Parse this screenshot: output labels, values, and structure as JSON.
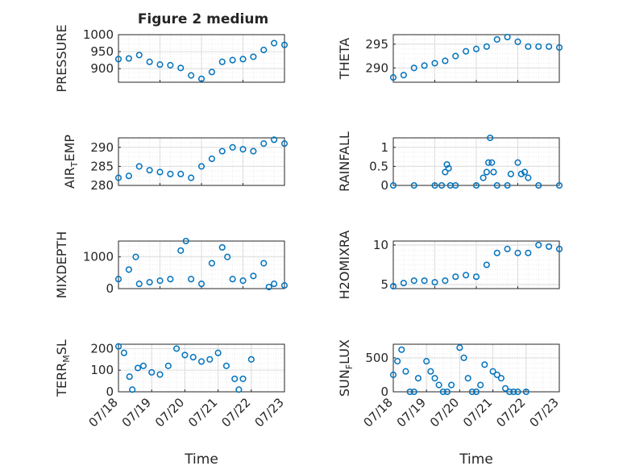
{
  "figure": {
    "title": "Figure 2 medium"
  },
  "colors": {
    "marker": "#0072BD",
    "axis": "#262626",
    "grid_major": "#dcdcdc",
    "grid_minor": "#ececec"
  },
  "chart_data": [
    {
      "type": "scatter",
      "id": "pressure",
      "ylabel": "PRESSURE",
      "xlim": [
        "07/18",
        "07/22"
      ],
      "ylim": [
        860,
        1000
      ],
      "yticks": [
        "900",
        "950",
        "1000"
      ],
      "ytick_values": [
        900,
        950,
        1000
      ],
      "xtick_labels": [],
      "xlabel": "",
      "grid": "on",
      "x": [
        "07/18",
        "07/18 06:00",
        "07/18 12:00",
        "07/18 18:00",
        "07/19",
        "07/19 06:00",
        "07/19 12:00",
        "07/19 18:00",
        "07/20",
        "07/20 06:00",
        "07/20 12:00",
        "07/20 18:00",
        "07/21",
        "07/21 06:00",
        "07/21 12:00",
        "07/21 18:00",
        "07/22"
      ],
      "y": [
        928,
        930,
        940,
        920,
        912,
        910,
        902,
        880,
        870,
        890,
        920,
        925,
        928,
        935,
        955,
        975,
        970
      ]
    },
    {
      "type": "scatter",
      "id": "theta",
      "ylabel": "THETA",
      "xlim": [
        "07/18",
        "07/22"
      ],
      "ylim": [
        287,
        297
      ],
      "yticks": [
        "290",
        "295"
      ],
      "ytick_values": [
        290,
        295
      ],
      "xtick_labels": [],
      "xlabel": "",
      "grid": "on",
      "x": [
        "07/18",
        "07/18 06:00",
        "07/18 12:00",
        "07/18 18:00",
        "07/19",
        "07/19 06:00",
        "07/19 12:00",
        "07/19 18:00",
        "07/20",
        "07/20 06:00",
        "07/20 12:00",
        "07/20 18:00",
        "07/21",
        "07/21 06:00",
        "07/21 12:00",
        "07/21 18:00",
        "07/22"
      ],
      "y": [
        288,
        288.5,
        290,
        290.5,
        291,
        291.5,
        292.5,
        293.5,
        294,
        294.5,
        296,
        296.5,
        295.5,
        294.5,
        294.5,
        294.5,
        294.3
      ]
    },
    {
      "type": "scatter",
      "id": "air-temp",
      "ylabel": "AIR_TEMP",
      "xlim": [
        "07/18",
        "07/22"
      ],
      "ylim": [
        280,
        292.5
      ],
      "yticks": [
        "280",
        "285",
        "290"
      ],
      "ytick_values": [
        280,
        285,
        290
      ],
      "xtick_labels": [],
      "xlabel": "",
      "grid": "on",
      "x": [
        "07/18",
        "07/18 06:00",
        "07/18 12:00",
        "07/18 18:00",
        "07/19",
        "07/19 06:00",
        "07/19 12:00",
        "07/19 18:00",
        "07/20",
        "07/20 06:00",
        "07/20 12:00",
        "07/20 18:00",
        "07/21",
        "07/21 06:00",
        "07/21 12:00",
        "07/21 18:00",
        "07/22"
      ],
      "y": [
        282,
        282.5,
        285,
        284,
        283.5,
        283,
        283,
        282,
        285,
        287,
        289,
        290,
        289.5,
        289,
        291,
        292,
        291
      ]
    },
    {
      "type": "scatter",
      "id": "rainfall",
      "ylabel": "RAINFALL",
      "xlim": [
        "07/18",
        "07/22"
      ],
      "ylim": [
        0,
        1.25
      ],
      "yticks": [
        "0",
        "0.5",
        "1"
      ],
      "ytick_values": [
        0,
        0.5,
        1
      ],
      "xtick_labels": [],
      "xlabel": "",
      "grid": "on",
      "x": [
        "07/18",
        "07/18 12:00",
        "07/19",
        "07/19 04:00",
        "07/19 06:00",
        "07/19 07:00",
        "07/19 08:00",
        "07/19 09:00",
        "07/19 12:00",
        "07/20",
        "07/20 04:00",
        "07/20 06:00",
        "07/20 07:00",
        "07/20 08:00",
        "07/20 09:00",
        "07/20 10:00",
        "07/20 12:00",
        "07/20 18:00",
        "07/20 20:00",
        "07/21",
        "07/21 02:00",
        "07/21 04:00",
        "07/21 06:00",
        "07/21 12:00",
        "07/22"
      ],
      "y": [
        0,
        0,
        0,
        0,
        0.35,
        0.55,
        0.45,
        0,
        0,
        0,
        0.2,
        0.35,
        0.6,
        1.25,
        0.6,
        0.35,
        0,
        0,
        0.3,
        0.6,
        0.3,
        0.35,
        0.2,
        0,
        0
      ]
    },
    {
      "type": "scatter",
      "id": "mixdepth",
      "ylabel": "MIXDEPTH",
      "xlim": [
        "07/18",
        "07/22"
      ],
      "ylim": [
        0,
        1500
      ],
      "yticks": [
        "0",
        "1000"
      ],
      "ytick_values": [
        0,
        1000
      ],
      "xtick_labels": [],
      "xlabel": "",
      "grid": "on",
      "x": [
        "07/18",
        "07/18 06:00",
        "07/18 10:00",
        "07/18 12:00",
        "07/18 18:00",
        "07/19",
        "07/19 06:00",
        "07/19 12:00",
        "07/19 15:00",
        "07/19 18:00",
        "07/20",
        "07/20 06:00",
        "07/20 12:00",
        "07/20 15:00",
        "07/20 18:00",
        "07/21",
        "07/21 06:00",
        "07/21 12:00",
        "07/21 15:00",
        "07/21 18:00",
        "07/22"
      ],
      "y": [
        300,
        600,
        1000,
        150,
        200,
        250,
        300,
        1200,
        1500,
        300,
        150,
        800,
        1300,
        1000,
        300,
        250,
        400,
        800,
        50,
        150,
        100
      ]
    },
    {
      "type": "scatter",
      "id": "h2omixra",
      "ylabel": "H2OMIXRA",
      "xlim": [
        "07/18",
        "07/22"
      ],
      "ylim": [
        4.5,
        10.5
      ],
      "yticks": [
        "5",
        "10"
      ],
      "ytick_values": [
        5,
        10
      ],
      "xtick_labels": [],
      "xlabel": "",
      "grid": "on",
      "x": [
        "07/18",
        "07/18 06:00",
        "07/18 12:00",
        "07/18 18:00",
        "07/19",
        "07/19 06:00",
        "07/19 12:00",
        "07/19 18:00",
        "07/20",
        "07/20 06:00",
        "07/20 12:00",
        "07/20 18:00",
        "07/21",
        "07/21 06:00",
        "07/21 12:00",
        "07/21 18:00",
        "07/22"
      ],
      "y": [
        4.8,
        5.2,
        5.5,
        5.5,
        5.3,
        5.5,
        6,
        6.2,
        6,
        7.5,
        9,
        9.5,
        9,
        9,
        10,
        9.8,
        9.5
      ]
    },
    {
      "type": "scatter",
      "id": "terr-msl",
      "ylabel": "TERR_MSL",
      "xlim": [
        "07/18",
        "07/23"
      ],
      "ylim": [
        0,
        220
      ],
      "yticks": [
        "0",
        "100",
        "200"
      ],
      "ytick_values": [
        0,
        100,
        200
      ],
      "xtick_labels": [
        "07/18",
        "07/19",
        "07/20",
        "07/21",
        "07/22",
        "07/23"
      ],
      "xlabel": "Time",
      "grid": "on",
      "x": [
        "07/18",
        "07/18 04:00",
        "07/18 08:00",
        "07/18 10:00",
        "07/18 14:00",
        "07/18 18:00",
        "07/19",
        "07/19 06:00",
        "07/19 12:00",
        "07/19 18:00",
        "07/20",
        "07/20 06:00",
        "07/20 12:00",
        "07/20 18:00",
        "07/21",
        "07/21 06:00",
        "07/21 12:00",
        "07/21 15:00",
        "07/21 18:00",
        "07/22"
      ],
      "y": [
        210,
        180,
        70,
        10,
        110,
        120,
        90,
        80,
        120,
        200,
        170,
        160,
        140,
        150,
        180,
        120,
        60,
        10,
        60,
        150
      ]
    },
    {
      "type": "scatter",
      "id": "sun-flux",
      "ylabel": "SUN_FLUX",
      "xlim": [
        "07/18",
        "07/23"
      ],
      "ylim": [
        0,
        700
      ],
      "yticks": [
        "0",
        "500"
      ],
      "ytick_values": [
        0,
        500
      ],
      "xtick_labels": [
        "07/18",
        "07/19",
        "07/20",
        "07/21",
        "07/22",
        "07/23"
      ],
      "xlabel": "Time",
      "grid": "on",
      "x": [
        "07/18",
        "07/18 03:00",
        "07/18 06:00",
        "07/18 09:00",
        "07/18 12:00",
        "07/18 15:00",
        "07/18 18:00",
        "07/19",
        "07/19 03:00",
        "07/19 06:00",
        "07/19 09:00",
        "07/19 12:00",
        "07/19 15:00",
        "07/19 18:00",
        "07/20",
        "07/20 03:00",
        "07/20 06:00",
        "07/20 09:00",
        "07/20 12:00",
        "07/20 15:00",
        "07/20 18:00",
        "07/21",
        "07/21 03:00",
        "07/21 06:00",
        "07/21 09:00",
        "07/21 12:00",
        "07/21 15:00",
        "07/21 18:00",
        "07/22"
      ],
      "y": [
        250,
        450,
        620,
        300,
        0,
        0,
        200,
        450,
        300,
        200,
        100,
        0,
        0,
        100,
        650,
        500,
        200,
        0,
        0,
        100,
        400,
        300,
        250,
        200,
        50,
        0,
        0,
        0,
        0
      ]
    }
  ]
}
